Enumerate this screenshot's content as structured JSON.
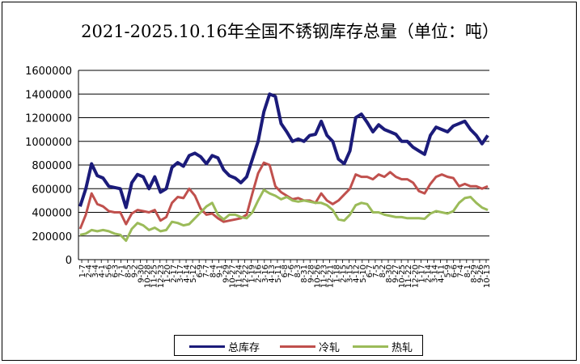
{
  "chart_data": {
    "type": "line",
    "title": "2021-2025.10.16年全国不锈钢库存总量（单位：吨）",
    "xlabel": "",
    "ylabel": "",
    "ylim": [
      0,
      1600000
    ],
    "yticks": [
      "0",
      "200000",
      "400000",
      "600000",
      "800000",
      "1000000",
      "1200000",
      "1400000",
      "1600000"
    ],
    "x_tick_labels": [
      "1-7",
      "2-4",
      "3-4",
      "4-1",
      "5-6",
      "6-3",
      "7-1",
      "8-5",
      "9-2",
      "9-30",
      "10-28",
      "11-25",
      "12-23",
      "1-20",
      "2-17",
      "3-17",
      "4-14",
      "5-12",
      "6-9",
      "7-7",
      "8-4",
      "9-1",
      "9-29",
      "10-27",
      "11-24",
      "12-22",
      "1-19",
      "2-16",
      "3-16",
      "4-13",
      "5-11",
      "6-8",
      "7-6",
      "8-3",
      "8-31",
      "9-28",
      "10-26",
      "11-23",
      "12-21",
      "1-18",
      "2-15",
      "3-15",
      "4-12",
      "5-10",
      "6-7",
      "7-5",
      "8-2",
      "8-30",
      "9-27",
      "10-25",
      "11-22",
      "12-20",
      "1-17",
      "2-14",
      "3-14",
      "4-11",
      "5-9",
      "6-6",
      "7-4",
      "8-1",
      "8-29",
      "9-26",
      "10-13"
    ],
    "grid": true,
    "legend_position": "bottom",
    "series": [
      {
        "name": "总库存",
        "color": "#1b1b7a",
        "values": [
          450000,
          600000,
          810000,
          710000,
          690000,
          620000,
          610000,
          600000,
          440000,
          650000,
          720000,
          700000,
          600000,
          700000,
          570000,
          600000,
          780000,
          820000,
          790000,
          880000,
          900000,
          870000,
          810000,
          880000,
          860000,
          760000,
          710000,
          690000,
          650000,
          700000,
          850000,
          1000000,
          1250000,
          1400000,
          1380000,
          1150000,
          1080000,
          1000000,
          1020000,
          1000000,
          1050000,
          1060000,
          1170000,
          1050000,
          1000000,
          850000,
          810000,
          920000,
          1200000,
          1230000,
          1160000,
          1080000,
          1140000,
          1100000,
          1080000,
          1060000,
          1000000,
          1000000,
          950000,
          920000,
          890000,
          1050000,
          1120000,
          1100000,
          1080000,
          1130000,
          1150000,
          1170000,
          1100000,
          1050000,
          980000,
          1050000
        ]
      },
      {
        "name": "冷轧",
        "color": "#c0504d",
        "values": [
          260000,
          380000,
          560000,
          470000,
          450000,
          410000,
          400000,
          400000,
          300000,
          390000,
          420000,
          410000,
          400000,
          420000,
          330000,
          360000,
          480000,
          530000,
          520000,
          600000,
          540000,
          430000,
          380000,
          390000,
          350000,
          320000,
          330000,
          340000,
          350000,
          380000,
          560000,
          730000,
          820000,
          800000,
          620000,
          570000,
          540000,
          510000,
          520000,
          500000,
          500000,
          480000,
          560000,
          500000,
          470000,
          500000,
          550000,
          600000,
          720000,
          700000,
          700000,
          680000,
          720000,
          700000,
          740000,
          700000,
          680000,
          680000,
          650000,
          580000,
          560000,
          640000,
          700000,
          720000,
          700000,
          690000,
          620000,
          640000,
          620000,
          620000,
          600000,
          620000
        ]
      },
      {
        "name": "热轧",
        "color": "#9bbb59",
        "values": [
          210000,
          220000,
          250000,
          240000,
          250000,
          240000,
          220000,
          210000,
          160000,
          260000,
          310000,
          290000,
          250000,
          270000,
          240000,
          250000,
          320000,
          310000,
          290000,
          300000,
          350000,
          400000,
          450000,
          480000,
          380000,
          340000,
          380000,
          380000,
          360000,
          350000,
          400000,
          500000,
          590000,
          560000,
          540000,
          510000,
          530000,
          500000,
          490000,
          500000,
          490000,
          480000,
          480000,
          460000,
          420000,
          340000,
          330000,
          380000,
          460000,
          480000,
          470000,
          400000,
          400000,
          380000,
          370000,
          360000,
          360000,
          350000,
          350000,
          350000,
          345000,
          390000,
          410000,
          400000,
          390000,
          410000,
          480000,
          520000,
          530000,
          480000,
          440000,
          420000
        ]
      }
    ]
  }
}
